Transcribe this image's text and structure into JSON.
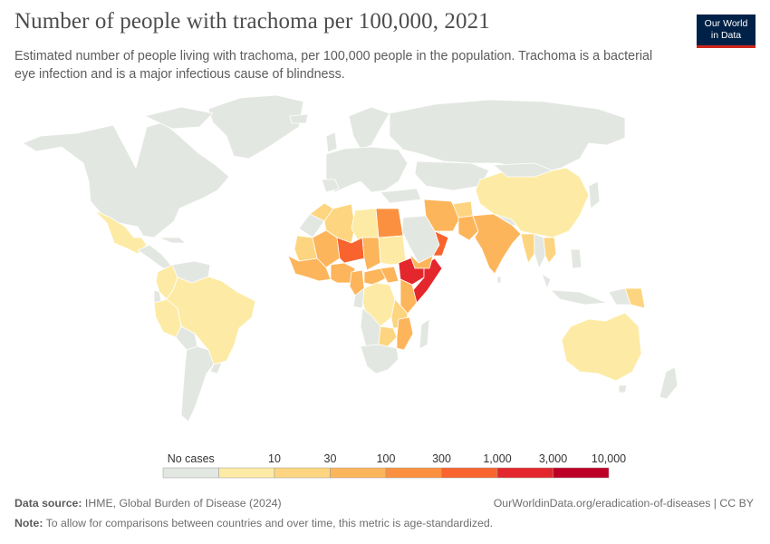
{
  "header": {
    "title": "Number of people with trachoma per 100,000, 2021",
    "subtitle": "Estimated number of people living with trachoma, per 100,000 people in the population. Trachoma is a bacterial eye infection and is a major infectious cause of blindness.",
    "logo_line1": "Our World",
    "logo_line2": "in Data"
  },
  "colors": {
    "no_data": "#e3e7e1",
    "border": "#ffffff",
    "bins": [
      "#fdeba5",
      "#fdd580",
      "#fdb55b",
      "#fb9140",
      "#f8632e",
      "#e4272c",
      "#bc0026"
    ],
    "logo_bg": "#002147",
    "logo_accent": "#ce261e"
  },
  "legend": {
    "no_cases_label": "No cases",
    "tick_labels": [
      "10",
      "30",
      "100",
      "300",
      "1,000",
      "3,000",
      "10,000"
    ]
  },
  "chart_data": {
    "type": "choropleth",
    "title": "Number of people with trachoma per 100,000, 2021",
    "unit": "per 100,000",
    "scale": "log",
    "bins": [
      {
        "label": "No cases",
        "max": 0
      },
      {
        "label": "0-10",
        "min": 0,
        "max": 10
      },
      {
        "label": "10-30",
        "min": 10,
        "max": 30
      },
      {
        "label": "30-100",
        "min": 30,
        "max": 100
      },
      {
        "label": "100-300",
        "min": 100,
        "max": 300
      },
      {
        "label": "300-1,000",
        "min": 300,
        "max": 1000
      },
      {
        "label": "1,000-3,000",
        "min": 1000,
        "max": 3000
      },
      {
        "label": "3,000-10,000",
        "min": 3000,
        "max": 10000
      }
    ],
    "regions": [
      {
        "name": "Mexico",
        "bin": "0-10"
      },
      {
        "name": "Brazil",
        "bin": "0-10"
      },
      {
        "name": "Colombia",
        "bin": "0-10"
      },
      {
        "name": "Peru",
        "bin": "0-10"
      },
      {
        "name": "Australia",
        "bin": "0-10"
      },
      {
        "name": "China",
        "bin": "0-10"
      },
      {
        "name": "India",
        "bin": "30-100"
      },
      {
        "name": "Pakistan",
        "bin": "30-100"
      },
      {
        "name": "Afghanistan",
        "bin": "10-30"
      },
      {
        "name": "Iran",
        "bin": "30-100"
      },
      {
        "name": "Egypt",
        "bin": "100-300"
      },
      {
        "name": "Libya",
        "bin": "0-10"
      },
      {
        "name": "Algeria",
        "bin": "10-30"
      },
      {
        "name": "Morocco",
        "bin": "10-30"
      },
      {
        "name": "Mauritania",
        "bin": "10-30"
      },
      {
        "name": "Mali",
        "bin": "30-100"
      },
      {
        "name": "Niger",
        "bin": "300-1,000"
      },
      {
        "name": "Chad",
        "bin": "30-100"
      },
      {
        "name": "Sudan",
        "bin": "0-10"
      },
      {
        "name": "South Sudan",
        "bin": "30-100"
      },
      {
        "name": "Ethiopia",
        "bin": "1,000-3,000"
      },
      {
        "name": "Somalia",
        "bin": "1,000-3,000"
      },
      {
        "name": "Kenya",
        "bin": "30-100"
      },
      {
        "name": "Oman",
        "bin": "300-1,000"
      },
      {
        "name": "Yemen",
        "bin": "30-100"
      },
      {
        "name": "Nigeria",
        "bin": "30-100"
      },
      {
        "name": "Cameroon",
        "bin": "30-100"
      },
      {
        "name": "Central African Republic",
        "bin": "30-100"
      },
      {
        "name": "Tanzania",
        "bin": "10-30"
      },
      {
        "name": "Mozambique",
        "bin": "30-100"
      },
      {
        "name": "Zambia",
        "bin": "10-30"
      },
      {
        "name": "Democratic Republic of Congo",
        "bin": "0-10"
      },
      {
        "name": "Myanmar",
        "bin": "10-30"
      },
      {
        "name": "Vietnam",
        "bin": "10-30"
      },
      {
        "name": "Papua New Guinea",
        "bin": "10-30"
      }
    ]
  },
  "footer": {
    "source_label": "Data source:",
    "source_text": "IHME, Global Burden of Disease (2024)",
    "url_text": "OurWorldinData.org/eradication-of-diseases | CC BY",
    "note_label": "Note:",
    "note_text": "To allow for comparisons between countries and over time, this metric is age-standardized."
  }
}
